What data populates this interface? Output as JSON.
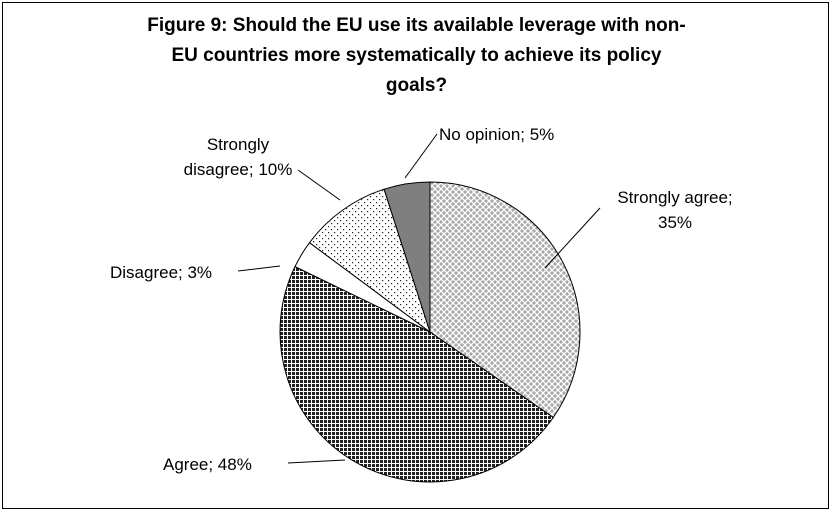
{
  "chart_data": {
    "type": "pie",
    "title_lines": [
      "Figure 9: Should the EU use its available leverage with non-",
      "EU countries more systematically to achieve its policy",
      "goals?"
    ],
    "slices": [
      {
        "label": "Strongly agree",
        "value": 35,
        "text_lines": [
          "Strongly agree;",
          "35%"
        ],
        "pattern": "diamond"
      },
      {
        "label": "Agree",
        "value": 48,
        "text_lines": [
          "Agree; 48%"
        ],
        "pattern": "dense"
      },
      {
        "label": "Disagree",
        "value": 3,
        "text_lines": [
          "Disagree; 3%"
        ],
        "pattern": "white"
      },
      {
        "label": "Strongly disagree",
        "value": 10,
        "text_lines": [
          "Strongly",
          "disagree; 10%"
        ],
        "pattern": "sparse"
      },
      {
        "label": "No opinion",
        "value": 5,
        "text_lines": [
          "No opinion; 5%"
        ],
        "pattern": "gray"
      }
    ],
    "start_angle_deg": 0,
    "direction": "clockwise",
    "legend": "none",
    "data_labels": "outside with leader lines"
  }
}
